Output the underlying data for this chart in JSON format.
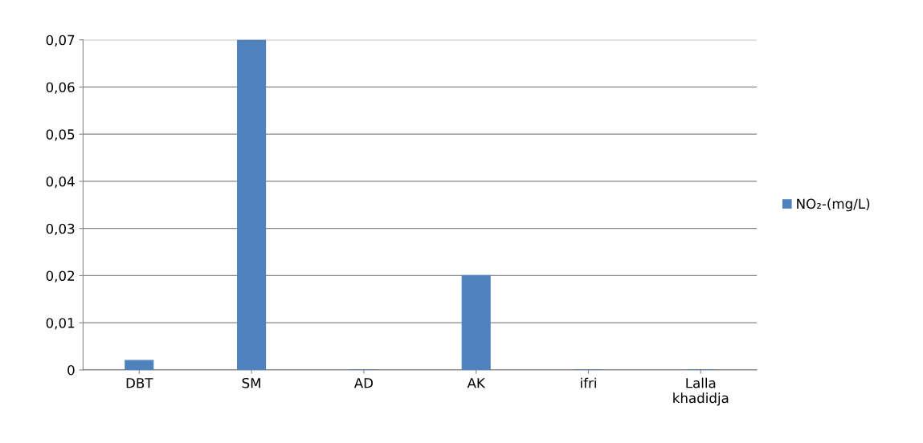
{
  "chart_data": {
    "type": "bar",
    "categories": [
      "DBT",
      "SM",
      "AD",
      "AK",
      "ifri",
      "Lalla\nkhadidja"
    ],
    "series": [
      {
        "name": "NO₂-(mg/L)",
        "color": "#4f81bd",
        "values": [
          0.002,
          0.07,
          0,
          0.02,
          0,
          0
        ]
      }
    ],
    "ylim": [
      0,
      0.07
    ],
    "yticks": [
      0,
      {
        "value": 0.01,
        "label": "0,01"
      },
      {
        "value": 0.02,
        "label": "0,02"
      },
      {
        "value": 0.03,
        "label": "0,03"
      },
      {
        "value": 0.04,
        "label": "0,04"
      },
      {
        "value": 0.05,
        "label": "0,05"
      },
      {
        "value": 0.06,
        "label": "0,06"
      },
      {
        "value": 0.07,
        "label": "0,07"
      }
    ],
    "grid": "y",
    "legend": "right"
  }
}
